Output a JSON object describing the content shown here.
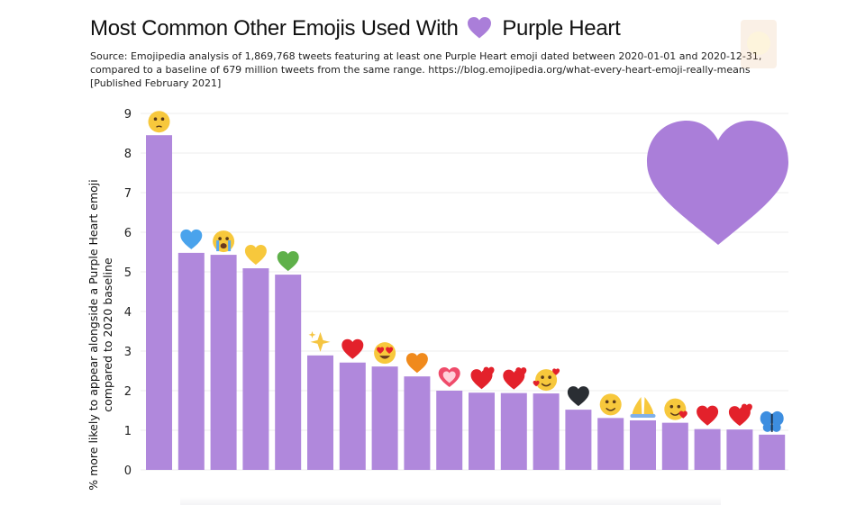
{
  "title_prefix": "Most Common Other Emojis Used With",
  "title_suffix": "Purple Heart",
  "source": "Source: Emojipedia analysis of 1,869,768 tweets featuring at least one Purple Heart emoji dated between 2020-01-01 and 2020-12-31, compared to a baseline of 679 million tweets from the same range. https://blog.emojipedia.org/what-every-heart-emoji-really-means [Published February 2021]",
  "ylabel_line1": "% more likely to appear alongside a Purple Heart emoji",
  "ylabel_line2": "compared to 2020 baseline",
  "colors": {
    "bar": "#b088dc",
    "heart": "#aa7ed9",
    "grid": "#ececec"
  },
  "chart_data": {
    "type": "bar",
    "categories": [
      "pleading-face",
      "blue-heart",
      "loudly-crying-face",
      "yellow-heart",
      "green-heart",
      "sparkles",
      "red-heart",
      "smiling-face-with-heart-eyes",
      "orange-heart",
      "growing-heart",
      "heart-exclamation",
      "two-hearts",
      "smiling-face-with-hearts",
      "black-heart",
      "smiling-face-with-smiling-eyes",
      "folded-hands",
      "face-blowing-a-kiss",
      "beating-heart",
      "revolving-hearts",
      "butterfly"
    ],
    "values": [
      8.45,
      5.48,
      5.43,
      5.09,
      4.93,
      2.89,
      2.71,
      2.61,
      2.36,
      2.0,
      1.95,
      1.94,
      1.93,
      1.52,
      1.31,
      1.25,
      1.19,
      1.03,
      1.02,
      0.89
    ],
    "ylim": [
      0,
      9
    ],
    "yticks": [
      "0",
      "1",
      "2",
      "3",
      "4",
      "5",
      "6",
      "7",
      "8",
      "9"
    ],
    "grid": true
  }
}
